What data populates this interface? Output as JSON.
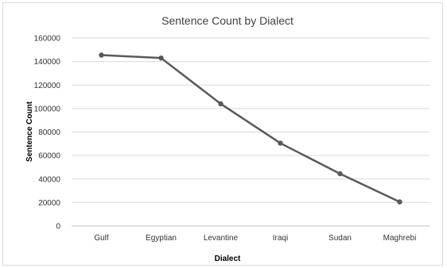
{
  "chart_data": {
    "type": "line",
    "title": "Sentence Count by Dialect",
    "xlabel": "Dialect",
    "ylabel": "Sentence  Count",
    "categories": [
      "Gulf",
      "Egyptian",
      "Levantine",
      "Iraqi",
      "Sudan",
      "Maghrebi"
    ],
    "series": [
      {
        "name": "",
        "values": [
          145500,
          143000,
          104000,
          70500,
          44500,
          20500
        ],
        "color": "#595959"
      }
    ],
    "ylim": [
      0,
      160000
    ],
    "yticks": [
      "0",
      "20000",
      "40000",
      "60000",
      "80000",
      "100000",
      "120000",
      "140000",
      "160000"
    ],
    "grid": true,
    "legend": "none"
  }
}
